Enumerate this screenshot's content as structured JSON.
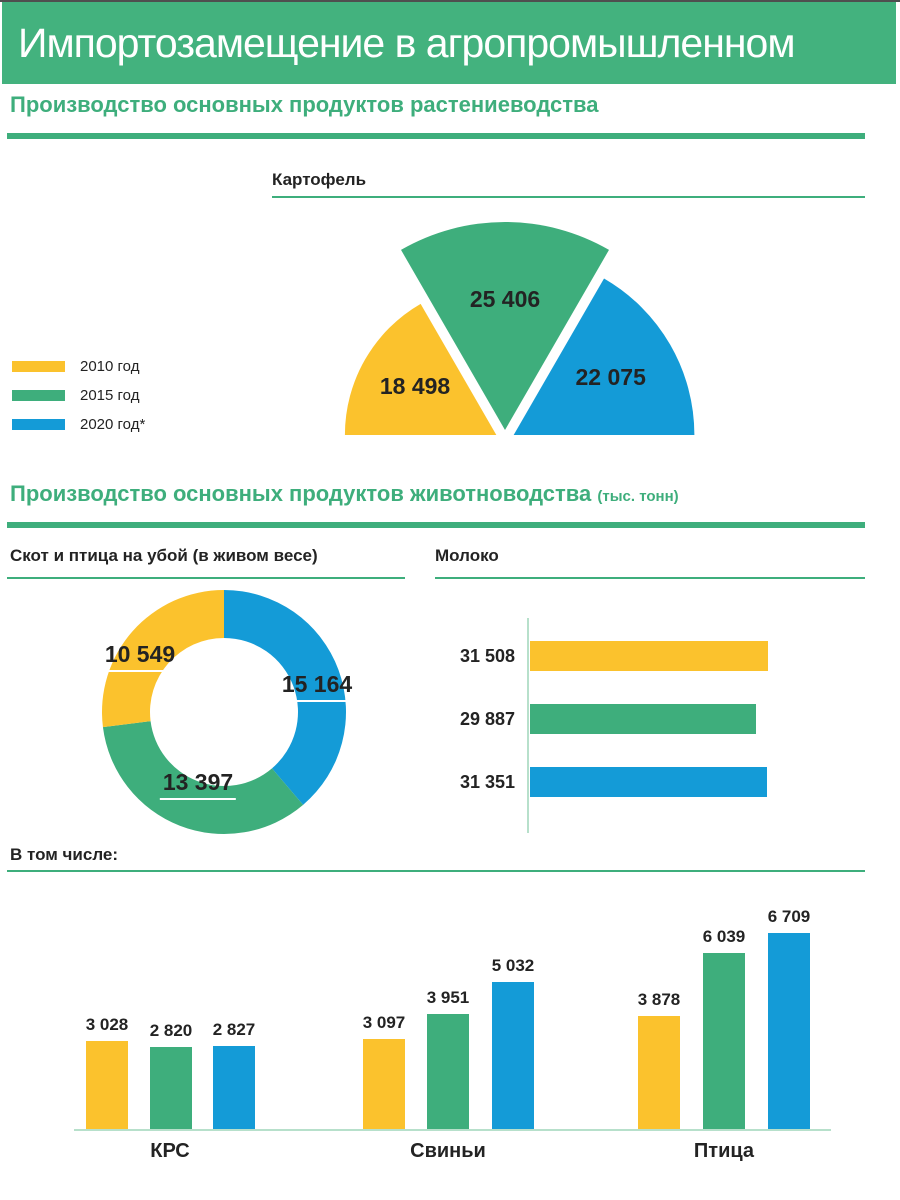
{
  "page": {
    "title": "Импортозамещение в агропромышленном"
  },
  "colors": {
    "header_background": "#43B27E",
    "header_text": "#FFFFFF",
    "accent_green": "#3EAE7C",
    "axis_line_light": "#B7E0CB",
    "text": "#232323",
    "year_2010": "#FBC22D",
    "year_2015": "#3EAE7C",
    "year_2020": "#149BD7"
  },
  "legend": {
    "items": [
      {
        "label": "2010 год",
        "color": "#FBC22D"
      },
      {
        "label": "2015 год",
        "color": "#3EAE7C"
      },
      {
        "label": "2020 год*",
        "color": "#149BD7"
      }
    ]
  },
  "sections": {
    "crops": {
      "title": "Производство основных продуктов растениеводства"
    },
    "livestock": {
      "title": "Производство основных продуктов животноводства",
      "units": "(тыс. тонн)"
    }
  },
  "chart_data": [
    {
      "id": "potato",
      "type": "pie",
      "variant": "exploded-semicircle-fan",
      "title": "Картофель",
      "slices": [
        {
          "label": "2010 год",
          "value": 18498
        },
        {
          "label": "2015 год",
          "value": 25406
        },
        {
          "label": "2020 год*",
          "value": 22075
        }
      ]
    },
    {
      "id": "slaughter",
      "type": "pie",
      "variant": "donut",
      "title": "Скот и птица на убой (в живом весе)",
      "slices": [
        {
          "label": "2010 год",
          "value": 10549
        },
        {
          "label": "2015 год",
          "value": 13397
        },
        {
          "label": "2020 год*",
          "value": 15164
        }
      ],
      "clockwise_from_top_order": [
        "2020 год*",
        "2015 год",
        "2010 год"
      ]
    },
    {
      "id": "milk",
      "type": "bar",
      "orientation": "horizontal",
      "title": "Молоко",
      "bars": [
        {
          "label": "2010 год",
          "value": 31508
        },
        {
          "label": "2015 год",
          "value": 29887
        },
        {
          "label": "2020 год*",
          "value": 31351
        }
      ]
    },
    {
      "id": "by_species",
      "type": "bar",
      "variant": "grouped",
      "title": "В том числе:",
      "categories": [
        "КРС",
        "Свиньи",
        "Птица"
      ],
      "series": [
        {
          "name": "2010 год",
          "values": [
            3028,
            3097,
            3878
          ]
        },
        {
          "name": "2015 год",
          "values": [
            2820,
            3951,
            6039
          ]
        },
        {
          "name": "2020 год*",
          "values": [
            2827,
            5032,
            6709
          ]
        }
      ]
    }
  ]
}
